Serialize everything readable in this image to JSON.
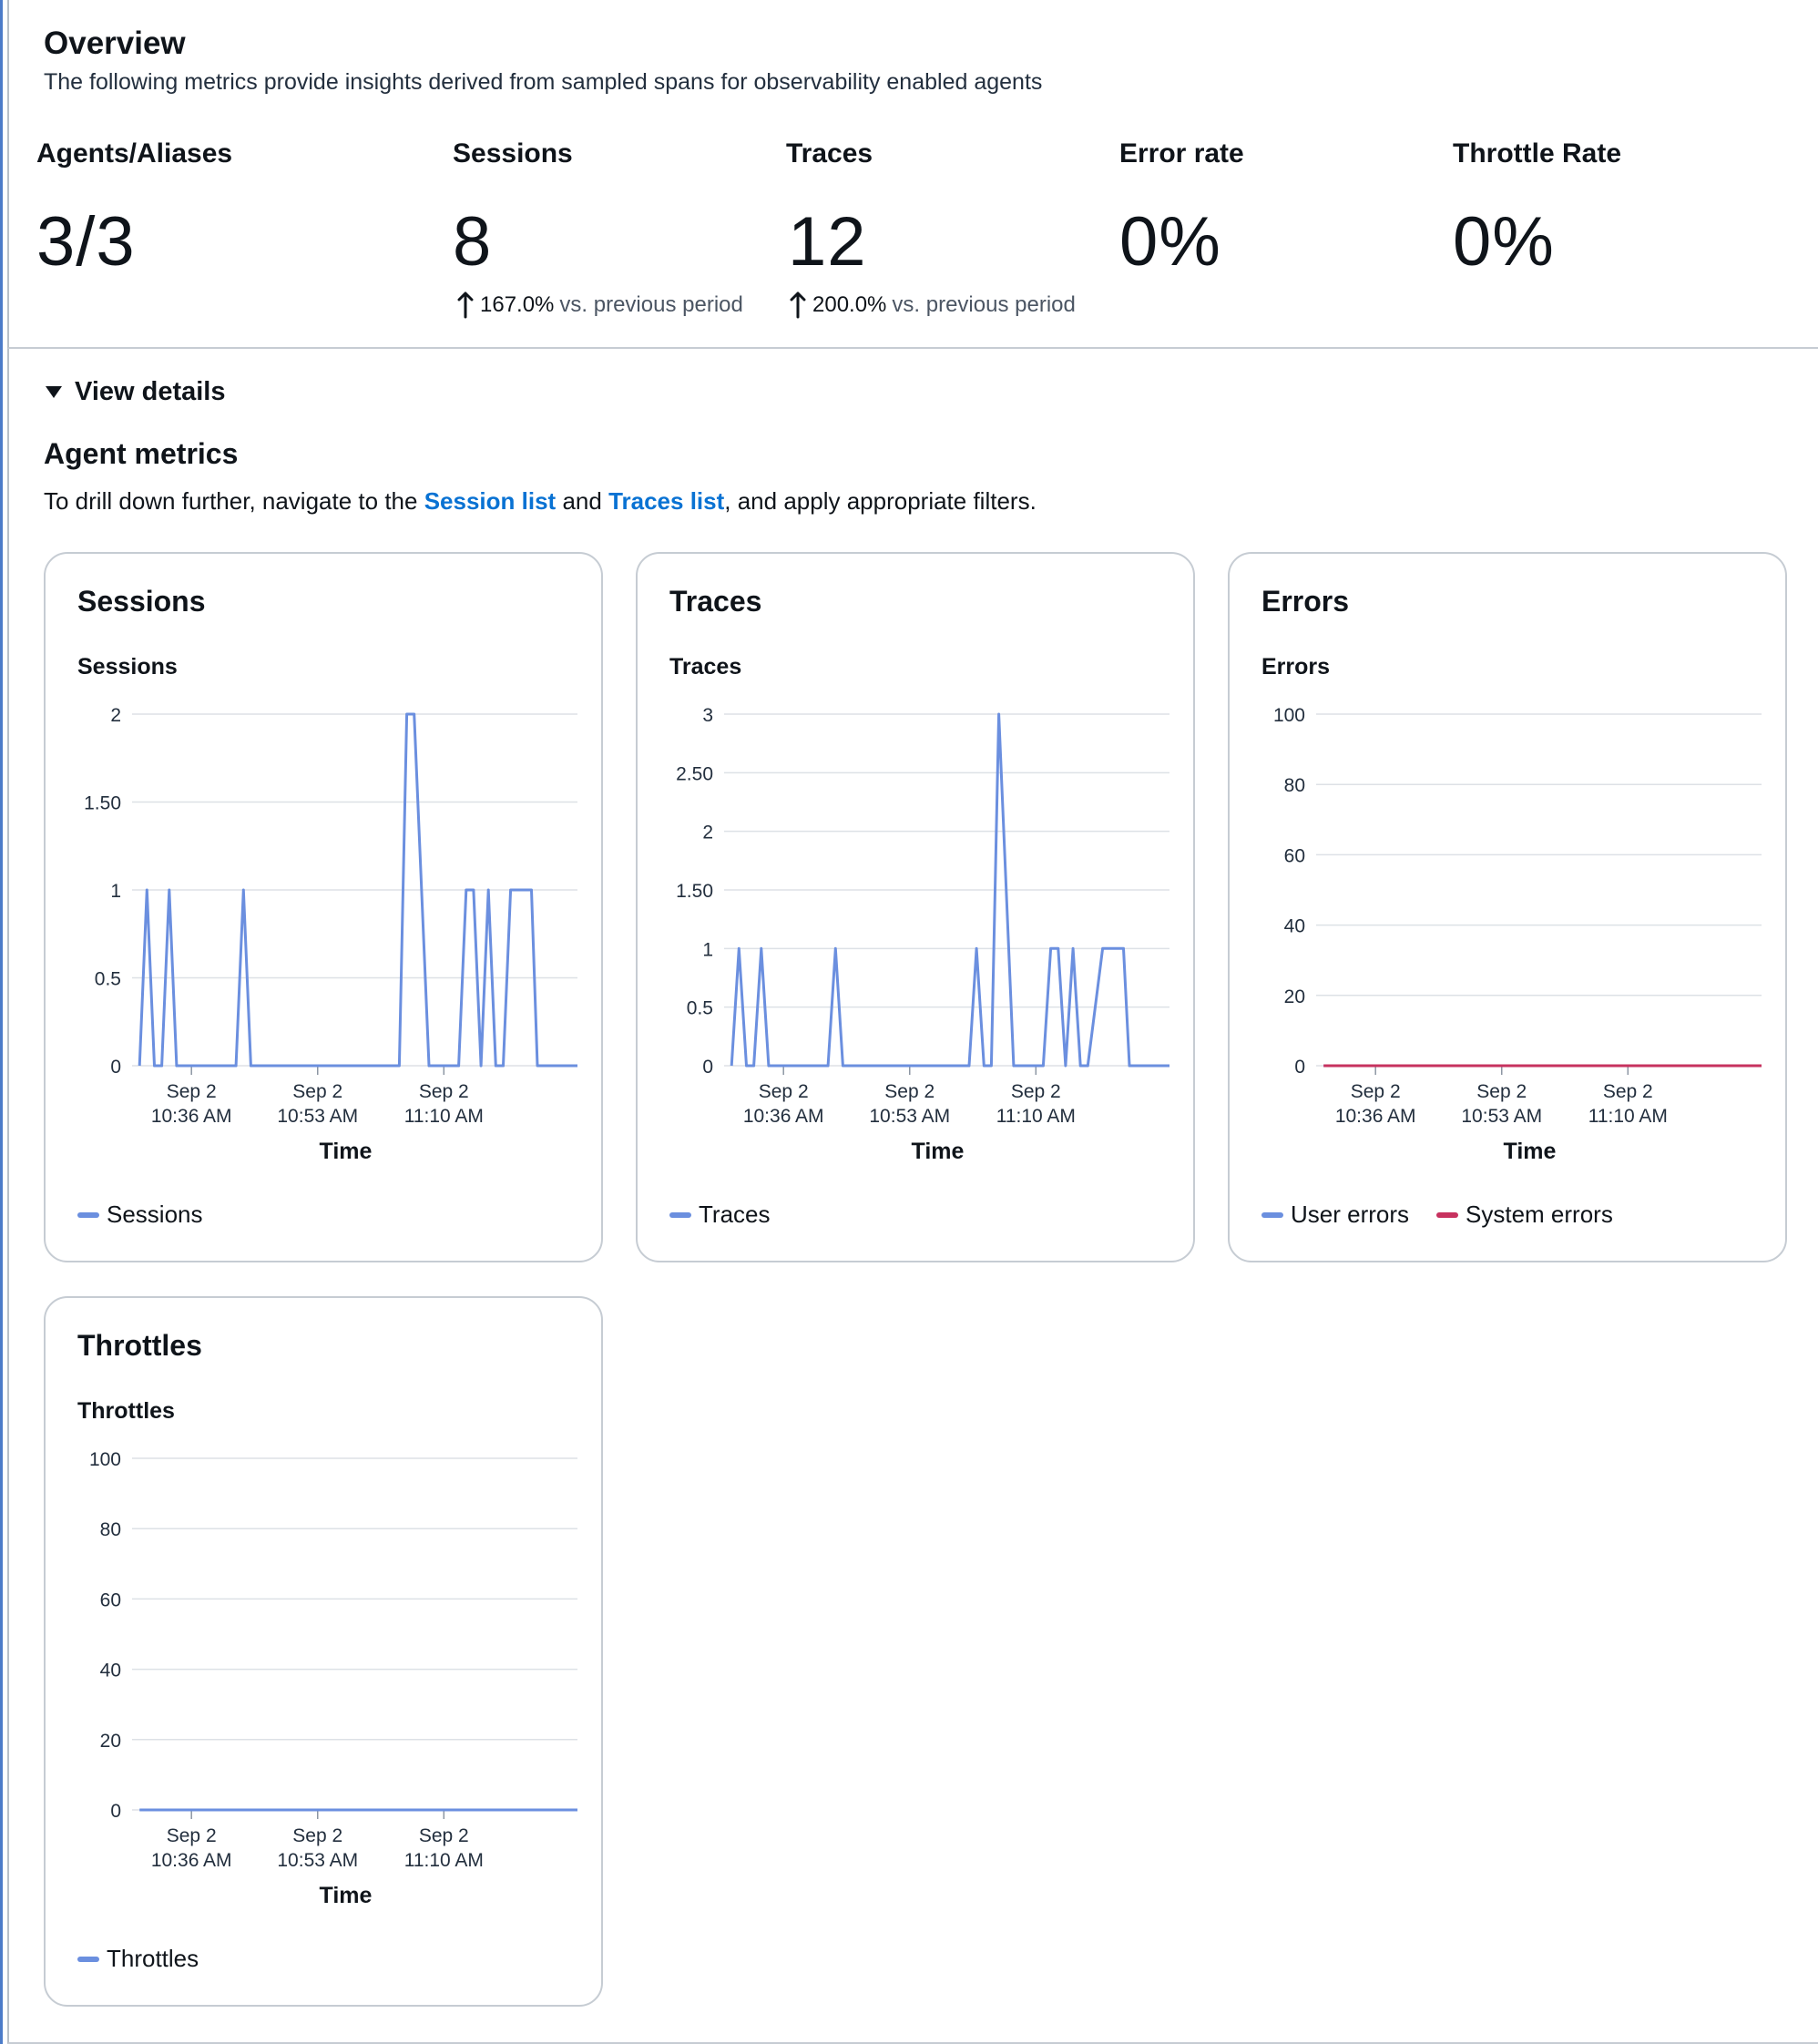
{
  "overview": {
    "title": "Overview",
    "description": "The following metrics provide insights derived from sampled spans for observability enabled agents",
    "kpis": {
      "agents": {
        "label": "Agents/Aliases",
        "value": "3/3"
      },
      "sessions": {
        "label": "Sessions",
        "value": "8",
        "change": "167.0%",
        "compare": "vs. previous period"
      },
      "traces": {
        "label": "Traces",
        "value": "12",
        "change": "200.0%",
        "compare": "vs. previous period"
      },
      "error_rate": {
        "label": "Error rate",
        "value": "0%"
      },
      "throttle_rate": {
        "label": "Throttle Rate",
        "value": "0%"
      }
    }
  },
  "details": {
    "toggle_label": "View details",
    "section_title": "Agent metrics",
    "drill_prefix": "To drill down further, navigate to the",
    "session_link": "Session list",
    "and_word": "and",
    "traces_link": "Traces list",
    "drill_suffix": ", and apply appropriate filters."
  },
  "colors": {
    "series_blue": "#6b8fdf",
    "series_red": "#c7325f",
    "link": "#0972d3",
    "grid": "#dde1e6"
  },
  "chart_data": [
    {
      "id": "sessions",
      "type": "line",
      "card_title": "Sessions",
      "title": "Sessions",
      "xlabel": "Time",
      "ylabel": "",
      "ylim": [
        0,
        2
      ],
      "yticks": [
        0,
        0.5,
        1,
        1.5,
        2
      ],
      "ytick_labels": [
        "0",
        "0.5",
        "1",
        "1.50",
        "2"
      ],
      "xlim": [
        0,
        60
      ],
      "xticks": [
        {
          "x": 8,
          "label1": "Sep 2",
          "label2": "10:36 AM"
        },
        {
          "x": 25,
          "label1": "Sep 2",
          "label2": "10:53 AM"
        },
        {
          "x": 42,
          "label1": "Sep 2",
          "label2": "11:10 AM"
        }
      ],
      "series": [
        {
          "name": "Sessions",
          "color": "#6b8fdf",
          "x": [
            1,
            2,
            3,
            4,
            5,
            6,
            14,
            15,
            16,
            36,
            37,
            38,
            40,
            44,
            45,
            46,
            47,
            48,
            49,
            50,
            51,
            53,
            53.8,
            54.6,
            56,
            60
          ],
          "y": [
            0,
            1,
            0,
            0,
            1,
            0,
            0,
            1,
            0,
            0,
            2,
            2,
            0,
            0,
            1,
            1,
            0,
            1,
            0,
            0,
            1,
            1,
            1,
            0,
            0,
            0
          ]
        }
      ]
    },
    {
      "id": "traces",
      "type": "line",
      "card_title": "Traces",
      "title": "Traces",
      "xlabel": "Time",
      "ylabel": "",
      "ylim": [
        0,
        3
      ],
      "yticks": [
        0,
        0.5,
        1,
        1.5,
        2,
        2.5,
        3
      ],
      "ytick_labels": [
        "0",
        "0.5",
        "1",
        "1.50",
        "2",
        "2.50",
        "3"
      ],
      "xlim": [
        0,
        60
      ],
      "xticks": [
        {
          "x": 8,
          "label1": "Sep 2",
          "label2": "10:36 AM"
        },
        {
          "x": 25,
          "label1": "Sep 2",
          "label2": "10:53 AM"
        },
        {
          "x": 42,
          "label1": "Sep 2",
          "label2": "11:10 AM"
        }
      ],
      "series": [
        {
          "name": "Traces",
          "color": "#6b8fdf",
          "x": [
            1,
            2,
            3,
            4,
            5,
            6,
            14,
            15,
            16,
            33,
            34,
            35,
            36,
            37,
            39,
            43,
            44,
            45,
            46,
            47,
            48,
            49,
            51,
            53,
            53.8,
            54.6,
            56,
            60
          ],
          "y": [
            0,
            1,
            0,
            0,
            1,
            0,
            0,
            1,
            0,
            0,
            1,
            0,
            0,
            3,
            0,
            0,
            1,
            1,
            0,
            1,
            0,
            0,
            1,
            1,
            1,
            0,
            0,
            0
          ]
        }
      ]
    },
    {
      "id": "errors",
      "type": "line",
      "card_title": "Errors",
      "title": "Errors",
      "xlabel": "Time",
      "ylabel": "",
      "ylim": [
        0,
        100
      ],
      "yticks": [
        0,
        20,
        40,
        60,
        80,
        100
      ],
      "ytick_labels": [
        "0",
        "20",
        "40",
        "60",
        "80",
        "100"
      ],
      "xlim": [
        0,
        60
      ],
      "xticks": [
        {
          "x": 8,
          "label1": "Sep 2",
          "label2": "10:36 AM"
        },
        {
          "x": 25,
          "label1": "Sep 2",
          "label2": "10:53 AM"
        },
        {
          "x": 42,
          "label1": "Sep 2",
          "label2": "11:10 AM"
        }
      ],
      "series": [
        {
          "name": "User errors",
          "color": "#6b8fdf",
          "x": [
            1,
            60
          ],
          "y": [
            0,
            0
          ]
        },
        {
          "name": "System errors",
          "color": "#c7325f",
          "x": [
            1,
            60
          ],
          "y": [
            0,
            0
          ]
        }
      ]
    },
    {
      "id": "throttles",
      "type": "line",
      "card_title": "Throttles",
      "title": "Throttles",
      "xlabel": "Time",
      "ylabel": "",
      "ylim": [
        0,
        100
      ],
      "yticks": [
        0,
        20,
        40,
        60,
        80,
        100
      ],
      "ytick_labels": [
        "0",
        "20",
        "40",
        "60",
        "80",
        "100"
      ],
      "xlim": [
        0,
        60
      ],
      "xticks": [
        {
          "x": 8,
          "label1": "Sep 2",
          "label2": "10:36 AM"
        },
        {
          "x": 25,
          "label1": "Sep 2",
          "label2": "10:53 AM"
        },
        {
          "x": 42,
          "label1": "Sep 2",
          "label2": "11:10 AM"
        }
      ],
      "series": [
        {
          "name": "Throttles",
          "color": "#6b8fdf",
          "x": [
            1,
            60
          ],
          "y": [
            0,
            0
          ]
        }
      ]
    }
  ]
}
